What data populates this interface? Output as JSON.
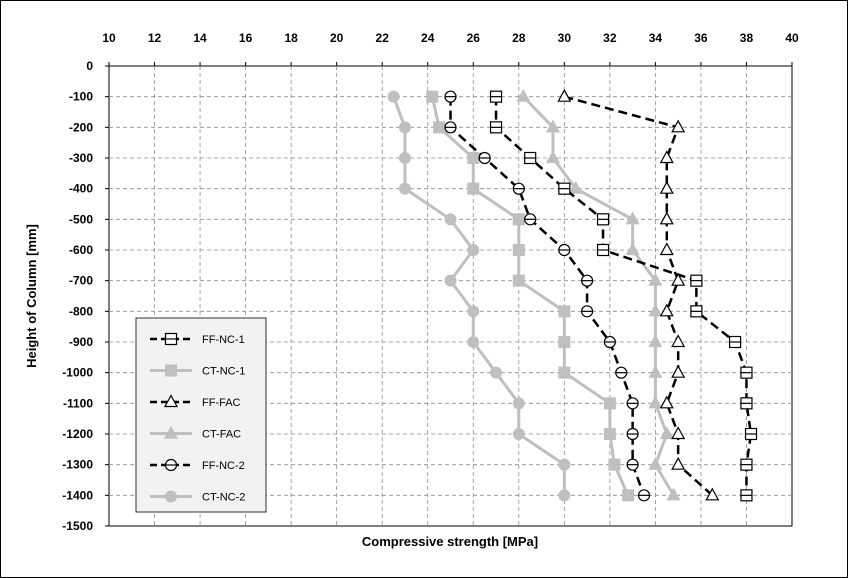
{
  "chart_data": {
    "type": "line",
    "xlabel": "Compressive strength [MPa]",
    "ylabel": "Height of Column [mm]",
    "xlim": [
      10,
      40
    ],
    "ylim": [
      -1500,
      0
    ],
    "x_ticks": [
      10,
      12,
      14,
      16,
      18,
      20,
      22,
      24,
      26,
      28,
      30,
      32,
      34,
      36,
      38,
      40
    ],
    "y_ticks": [
      0,
      -100,
      -200,
      -300,
      -400,
      -500,
      -600,
      -700,
      -800,
      -900,
      -1000,
      -1100,
      -1200,
      -1300,
      -1400,
      -1500
    ],
    "x_axis_position": "top",
    "grid": true,
    "legend_position": "bottom-left",
    "colors": {
      "ff": "#000000",
      "ct": "#bfbfbf",
      "legend_bg": "#f2f2f2",
      "grid": "#8c8c8c"
    },
    "series": [
      {
        "name": "FF-NC-1",
        "style": "dashed",
        "marker": "square-half",
        "color": "#000000",
        "x": [
          27.0,
          27.0,
          28.5,
          30.0,
          31.7,
          31.7,
          35.8,
          35.8,
          37.5,
          38.0,
          38.0,
          38.2,
          38.0,
          38.0
        ],
        "y": [
          -100,
          -200,
          -300,
          -400,
          -500,
          -600,
          -700,
          -800,
          -900,
          -1000,
          -1100,
          -1200,
          -1300,
          -1400
        ]
      },
      {
        "name": "CT-NC-1",
        "style": "solid",
        "marker": "square",
        "color": "#bfbfbf",
        "x": [
          24.2,
          24.5,
          26.0,
          26.0,
          28.0,
          28.0,
          28.0,
          30.0,
          30.0,
          30.0,
          32.0,
          32.0,
          32.2,
          32.8
        ],
        "y": [
          -100,
          -200,
          -300,
          -400,
          -500,
          -600,
          -700,
          -800,
          -900,
          -1000,
          -1100,
          -1200,
          -1300,
          -1400
        ]
      },
      {
        "name": "FF-FAC",
        "style": "dashed",
        "marker": "triangle",
        "color": "#000000",
        "x": [
          30.0,
          35.0,
          34.5,
          34.5,
          34.5,
          34.5,
          35.0,
          34.5,
          35.0,
          35.0,
          34.5,
          35.0,
          35.0,
          36.5
        ],
        "y": [
          -100,
          -200,
          -300,
          -400,
          -500,
          -600,
          -700,
          -800,
          -900,
          -1000,
          -1100,
          -1200,
          -1300,
          -1400
        ]
      },
      {
        "name": "CT-FAC",
        "style": "solid",
        "marker": "triangle-filled",
        "color": "#bfbfbf",
        "x": [
          28.2,
          29.5,
          29.5,
          30.5,
          33.0,
          33.0,
          34.0,
          34.0,
          34.0,
          34.0,
          34.0,
          34.5,
          34.0,
          34.8
        ],
        "y": [
          -100,
          -200,
          -300,
          -400,
          -500,
          -600,
          -700,
          -800,
          -900,
          -1000,
          -1100,
          -1200,
          -1300,
          -1400
        ]
      },
      {
        "name": "FF-NC-2",
        "style": "dashed",
        "marker": "circle-half",
        "color": "#000000",
        "x": [
          25.0,
          25.0,
          26.5,
          28.0,
          28.5,
          30.0,
          31.0,
          31.0,
          32.0,
          32.5,
          33.0,
          33.0,
          33.0,
          33.5
        ],
        "y": [
          -100,
          -200,
          -300,
          -400,
          -500,
          -600,
          -700,
          -800,
          -900,
          -1000,
          -1100,
          -1200,
          -1300,
          -1400
        ]
      },
      {
        "name": "CT-NC-2",
        "style": "solid",
        "marker": "circle",
        "color": "#bfbfbf",
        "x": [
          22.5,
          23.0,
          23.0,
          23.0,
          25.0,
          26.0,
          25.0,
          26.0,
          26.0,
          27.0,
          28.0,
          28.0,
          30.0,
          30.0
        ],
        "y": [
          -100,
          -200,
          -300,
          -400,
          -500,
          -600,
          -700,
          -800,
          -900,
          -1000,
          -1100,
          -1200,
          -1300,
          -1400
        ]
      }
    ]
  }
}
